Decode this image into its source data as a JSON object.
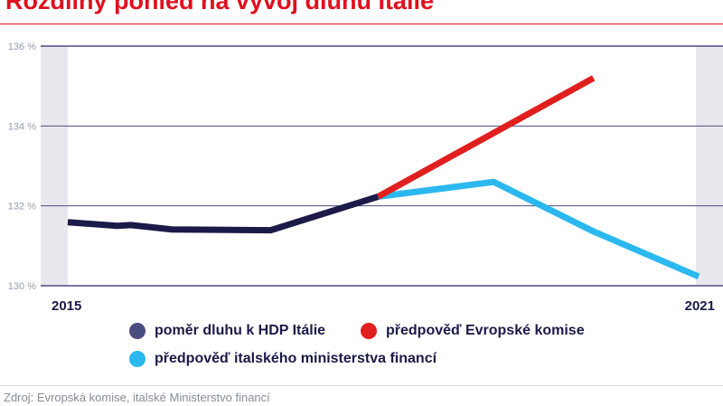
{
  "chart_data": {
    "type": "line",
    "title": "Rozdílný pohled na vývoj dluhu Itálie",
    "ylim": [
      130,
      136
    ],
    "yticks": [
      "136 %",
      "134 %",
      "132 %",
      "130 %"
    ],
    "ytick_values": [
      136,
      134,
      132,
      130
    ],
    "xlim": [
      2015,
      2021
    ],
    "xtick_labels": [
      "2015",
      "2021"
    ],
    "grid": true,
    "legend_position": "bottom",
    "series": [
      {
        "name": "poměr dluhu k HDP Itálie",
        "color": "#1b1a48",
        "x": [
          2015,
          2015.47,
          2015.6,
          2015.99,
          2016.93,
          2017.95
        ],
        "y": [
          131.59,
          131.5,
          131.52,
          131.41,
          131.39,
          132.23
        ]
      },
      {
        "name": "předpověď Evropské komise",
        "color": "#e0201e",
        "x": [
          2017.95,
          2020
        ],
        "y": [
          132.23,
          135.2
        ]
      },
      {
        "name": "předpověď italského ministerstva financí",
        "color": "#2bb8ee",
        "x": [
          2017.95,
          2019.05,
          2020,
          2021
        ],
        "y": [
          132.23,
          132.6,
          131.36,
          130.23
        ]
      }
    ]
  },
  "source": "Zdroj: Evropská komise, italské Ministerstvo financí"
}
